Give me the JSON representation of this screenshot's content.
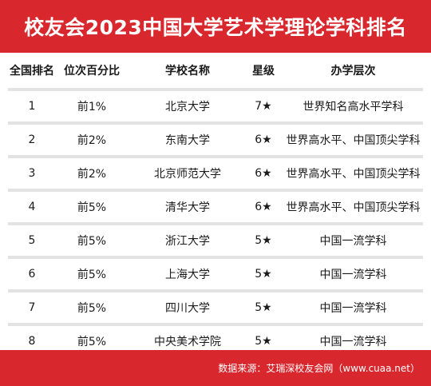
{
  "title": "校友会2023中国大学艺术学理论学科排名",
  "columns": [
    "全国排名",
    "位次百分比",
    "学校名称",
    "星级",
    "办学层次"
  ],
  "rows": [
    {
      "rank": "1",
      "percent": "前1%",
      "school": "北京大学",
      "stars": "7★",
      "level": "世界知名高水平学科"
    },
    {
      "rank": "2",
      "percent": "前2%",
      "school": "东南大学",
      "stars": "6★",
      "level": "世界高水平、中国顶尖学科"
    },
    {
      "rank": "3",
      "percent": "前2%",
      "school": "北京师范大学",
      "stars": "6★",
      "level": "世界高水平、中国顶尖学科"
    },
    {
      "rank": "4",
      "percent": "前5%",
      "school": "清华大学",
      "stars": "6★",
      "level": "世界高水平、中国顶尖学科"
    },
    {
      "rank": "5",
      "percent": "前5%",
      "school": "浙江大学",
      "stars": "5★",
      "level": "中国一流学科"
    },
    {
      "rank": "6",
      "percent": "前5%",
      "school": "上海大学",
      "stars": "5★",
      "level": "中国一流学科"
    },
    {
      "rank": "7",
      "percent": "前5%",
      "school": "四川大学",
      "stars": "5★",
      "level": "中国一流学科"
    },
    {
      "rank": "8",
      "percent": "前5%",
      "school": "中央美术学院",
      "stars": "5★",
      "level": "中国一流学科"
    }
  ],
  "footer": "数据来源：艾瑞深校友会网（www.cuaa.net）",
  "colors": {
    "accent": "#d9272e",
    "separator": "#e3e3e3"
  }
}
